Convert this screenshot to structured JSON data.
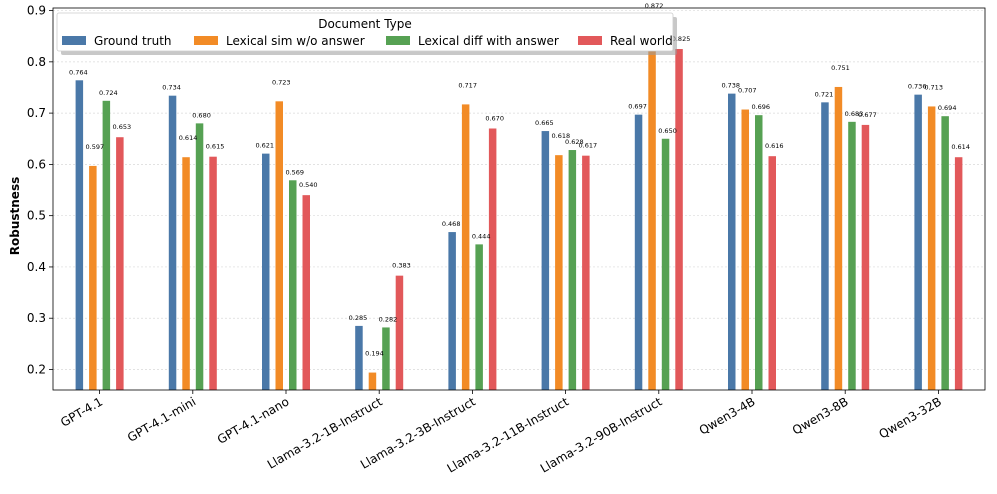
{
  "chart_data": {
    "type": "bar",
    "title": "",
    "xlabel": "",
    "ylabel": "Robustness",
    "ylim": [
      0.16,
      0.905
    ],
    "yticks": [
      "0.2",
      "0.3",
      "0.4",
      "0.5",
      "0.6",
      "0.7",
      "0.8",
      "0.9"
    ],
    "grid": true,
    "legend_title": "Document Type",
    "legend_position": "top",
    "categories": [
      "GPT-4.1",
      "GPT-4.1-mini",
      "GPT-4.1-nano",
      "Llama-3.2-1B-Instruct",
      "Llama-3.2-3B-Instruct",
      "Llama-3.2-11B-Instruct",
      "Llama-3.2-90B-Instruct",
      "Qwen3-4B",
      "Qwen3-8B",
      "Qwen3-32B"
    ],
    "series": [
      {
        "name": "Ground truth",
        "color": "#4a78a8",
        "values": [
          0.764,
          0.734,
          0.621,
          0.285,
          0.468,
          0.665,
          0.697,
          0.738,
          0.721,
          0.736
        ],
        "labels": [
          "0.764",
          "0.734",
          "0.621",
          "0.285",
          "0.468",
          "0.665",
          "0.697",
          "0.738",
          "0.721",
          "0.736"
        ]
      },
      {
        "name": "Lexical sim w/o answer",
        "color": "#f28b26",
        "values": [
          0.597,
          0.614,
          0.723,
          0.194,
          0.717,
          0.618,
          0.872,
          0.707,
          0.751,
          0.713
        ],
        "labels": [
          "0.597",
          "0.614",
          "0.723",
          "0.194",
          "0.717",
          "0.618",
          "0.872",
          "0.707",
          "0.751",
          "0.713"
        ]
      },
      {
        "name": "Lexical diff with answer",
        "color": "#56a153",
        "values": [
          0.724,
          0.68,
          0.569,
          0.282,
          0.444,
          0.628,
          0.65,
          0.696,
          0.683,
          0.694
        ],
        "labels": [
          "0.724",
          "0.680",
          "0.569",
          "0.282",
          "0.444",
          "0.628",
          "0.650",
          "0.696",
          "0.683",
          "0.694"
        ]
      },
      {
        "name": "Real world",
        "color": "#e2585a",
        "values": [
          0.653,
          0.615,
          0.54,
          0.383,
          0.67,
          0.617,
          0.825,
          0.616,
          0.677,
          0.614
        ],
        "labels": [
          "0.653",
          "0.615",
          "0.540",
          "0.383",
          "0.670",
          "0.617",
          "0.825",
          "0.616",
          "0.677",
          "0.614"
        ]
      }
    ]
  }
}
